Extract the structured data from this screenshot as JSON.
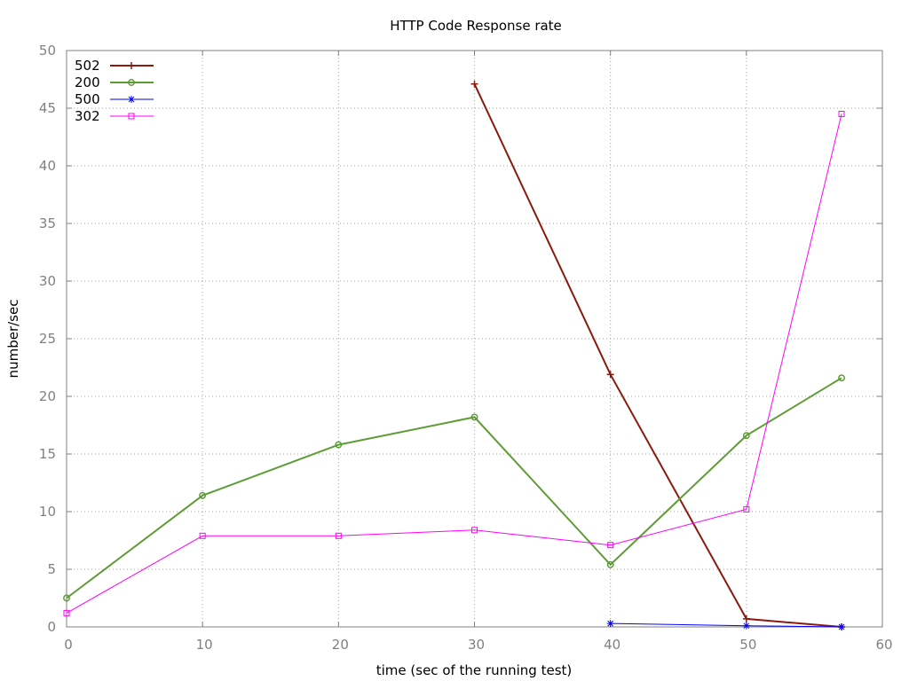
{
  "chart_data": {
    "type": "line",
    "title": "HTTP Code Response rate",
    "xlabel": "time (sec of the running test)",
    "ylabel": "number/sec",
    "xlim": [
      0,
      60
    ],
    "ylim": [
      0,
      50
    ],
    "xticks": [
      0,
      10,
      20,
      30,
      40,
      50,
      60
    ],
    "yticks": [
      0,
      5,
      10,
      15,
      20,
      25,
      30,
      35,
      40,
      45,
      50
    ],
    "grid": true,
    "legend_position": "top-left",
    "series": [
      {
        "name": "502",
        "color": "#8b1a0e",
        "marker": "plus",
        "x": [
          30,
          40,
          50,
          57
        ],
        "y": [
          47.1,
          21.9,
          0.7,
          0.0
        ]
      },
      {
        "name": "200",
        "color": "#5e9c36",
        "marker": "circle",
        "x": [
          0,
          10,
          20,
          30,
          40,
          50,
          57
        ],
        "y": [
          2.5,
          11.4,
          15.8,
          18.2,
          5.4,
          16.6,
          21.6
        ]
      },
      {
        "name": "500",
        "color": "#0000ff",
        "marker": "asterisk",
        "x": [
          40,
          50,
          57
        ],
        "y": [
          0.3,
          0.1,
          0.0
        ]
      },
      {
        "name": "302",
        "color": "#ff00ff",
        "marker": "square",
        "x": [
          0,
          10,
          20,
          30,
          40,
          50,
          57
        ],
        "y": [
          1.2,
          7.9,
          7.9,
          8.4,
          7.1,
          10.2,
          44.5
        ]
      }
    ]
  }
}
